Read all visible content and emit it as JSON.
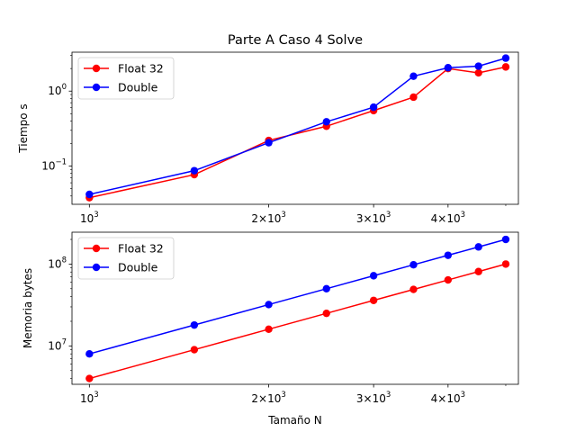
{
  "chart_data": [
    {
      "type": "line",
      "title": "Parte A Caso 4 Solve",
      "xlabel": "",
      "ylabel": "Tiempo s",
      "xscale": "log",
      "yscale": "log",
      "xlim": [
        935,
        5250
      ],
      "ylim": [
        0.031,
        3.3
      ],
      "x_ticks": [
        {
          "value": 1000,
          "base": "10",
          "exp": "3"
        },
        {
          "value": 2000,
          "base": "2×10",
          "exp": "3"
        },
        {
          "value": 3000,
          "base": "3×10",
          "exp": "3"
        },
        {
          "value": 4000,
          "base": "4×10",
          "exp": "3"
        }
      ],
      "y_ticks": [
        {
          "value": 0.1,
          "base": "10",
          "exp": "−1"
        },
        {
          "value": 1,
          "base": "10",
          "exp": "0"
        }
      ],
      "legend_position": "top-left",
      "x": [
        1000,
        1500,
        2000,
        2500,
        3000,
        3500,
        4000,
        4500,
        5000
      ],
      "series": [
        {
          "name": "Float 32",
          "color": "#ff0000",
          "values": [
            0.038,
            0.077,
            0.22,
            0.34,
            0.55,
            0.83,
            2.0,
            1.75,
            2.1
          ]
        },
        {
          "name": "Double",
          "color": "#0000ff",
          "values": [
            0.042,
            0.087,
            0.205,
            0.39,
            0.61,
            1.58,
            2.05,
            2.15,
            2.75
          ]
        }
      ]
    },
    {
      "type": "line",
      "title": "",
      "xlabel": "Tamaño N",
      "ylabel": "Memoria bytes",
      "xscale": "log",
      "yscale": "log",
      "xlim": [
        935,
        5250
      ],
      "ylim": [
        3400000,
        245000000
      ],
      "x_ticks": [
        {
          "value": 1000,
          "base": "10",
          "exp": "3"
        },
        {
          "value": 2000,
          "base": "2×10",
          "exp": "3"
        },
        {
          "value": 3000,
          "base": "3×10",
          "exp": "3"
        },
        {
          "value": 4000,
          "base": "4×10",
          "exp": "3"
        }
      ],
      "y_ticks": [
        {
          "value": 10000000,
          "base": "10",
          "exp": "7"
        },
        {
          "value": 100000000,
          "base": "10",
          "exp": "8"
        }
      ],
      "legend_position": "top-left",
      "x": [
        1000,
        1500,
        2000,
        2500,
        3000,
        3500,
        4000,
        4500,
        5000
      ],
      "series": [
        {
          "name": "Float 32",
          "color": "#ff0000",
          "values": [
            4000000,
            9000000,
            16000000,
            25000000,
            36000000,
            49000000,
            64000000,
            81000000,
            100000000
          ]
        },
        {
          "name": "Double",
          "color": "#0000ff",
          "values": [
            8000000,
            18000000,
            32000000,
            50000000,
            72000000,
            98000000,
            128000000,
            162000000,
            200000000
          ]
        }
      ]
    }
  ]
}
